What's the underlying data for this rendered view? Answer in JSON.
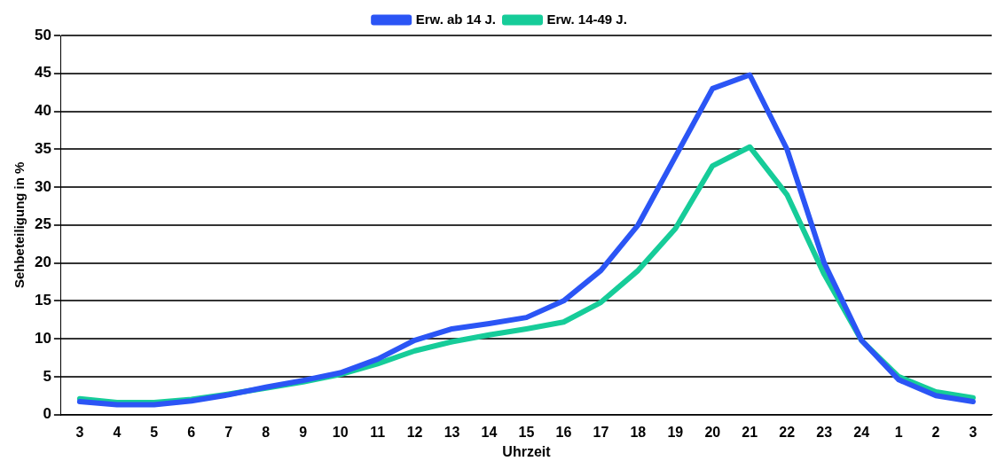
{
  "chart_data": {
    "type": "line",
    "xlabel": "Uhrzeit",
    "ylabel": "Sehbeteiligung in %",
    "categories": [
      "3",
      "4",
      "5",
      "6",
      "7",
      "8",
      "9",
      "10",
      "11",
      "12",
      "13",
      "14",
      "15",
      "16",
      "17",
      "18",
      "19",
      "20",
      "21",
      "22",
      "23",
      "24",
      "1",
      "2",
      "3"
    ],
    "series": [
      {
        "name": "Erw. ab 14 J.",
        "color": "#2b55f5",
        "values": [
          1.7,
          1.3,
          1.3,
          1.8,
          2.6,
          3.6,
          4.5,
          5.5,
          7.3,
          9.8,
          11.3,
          12,
          12.8,
          15,
          19,
          25,
          34,
          43,
          44.8,
          35,
          20,
          9.8,
          4.6,
          2.5,
          1.7
        ]
      },
      {
        "name": "Erw. 14-49 J.",
        "color": "#16cc99",
        "values": [
          2.1,
          1.6,
          1.6,
          2,
          2.7,
          3.5,
          4.3,
          5.3,
          6.7,
          8.4,
          9.6,
          10.5,
          11.3,
          12.2,
          14.8,
          19,
          24.5,
          32.8,
          35.3,
          29,
          18.5,
          9.8,
          5,
          3,
          2.2
        ]
      }
    ],
    "ylim": [
      0,
      50
    ],
    "yticks": [
      0,
      5,
      10,
      15,
      20,
      25,
      30,
      35,
      40,
      45,
      50
    ],
    "grid": "y",
    "legend": "top",
    "marker": "none",
    "line_style": "solid"
  }
}
